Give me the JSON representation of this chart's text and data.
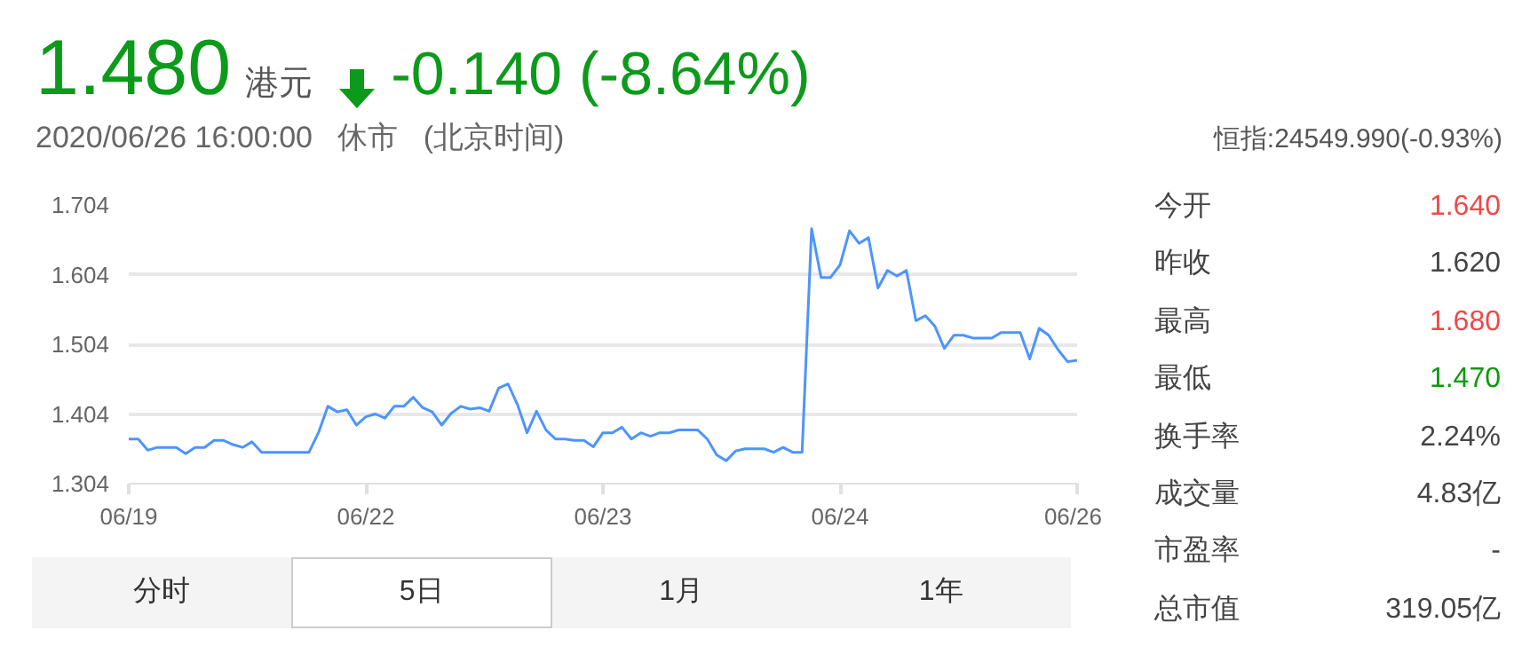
{
  "chart_data": [
    {
      "type": "line",
      "title": "1.480",
      "subtitle": "2020/06/26 16:00:00   休市   (北京时间)",
      "annotations": [
        "港元",
        "-0.140 (-8.64%)",
        "分时",
        "5日",
        "1月",
        "1年"
      ],
      "categories": [
        "06/19",
        null,
        null,
        null,
        null,
        null,
        null,
        null,
        null,
        null,
        null,
        null,
        null,
        null,
        null,
        null,
        null,
        null,
        null,
        null,
        null,
        null,
        null,
        null,
        null,
        "06/22",
        null,
        null,
        null,
        null,
        null,
        null,
        null,
        null,
        null,
        null,
        null,
        null,
        null,
        null,
        null,
        null,
        null,
        null,
        null,
        null,
        null,
        null,
        null,
        null,
        "06/23",
        null,
        null,
        null,
        null,
        null,
        null,
        null,
        null,
        null,
        null,
        null,
        null,
        null,
        null,
        null,
        null,
        null,
        null,
        null,
        null,
        null,
        null,
        null,
        null,
        "06/24",
        null,
        null,
        null,
        null,
        null,
        null,
        null,
        null,
        null,
        null,
        null,
        null,
        null,
        null,
        null,
        null,
        null,
        null,
        null,
        null,
        null,
        null,
        null,
        null,
        "06/26"
      ],
      "values": [
        1.368,
        1.368,
        1.352,
        1.356,
        1.356,
        1.356,
        1.347,
        1.356,
        1.356,
        1.366,
        1.366,
        1.36,
        1.356,
        1.364,
        1.349,
        1.349,
        1.349,
        1.349,
        1.349,
        1.349,
        1.377,
        1.415,
        1.407,
        1.41,
        1.388,
        1.4,
        1.404,
        1.398,
        1.415,
        1.415,
        1.428,
        1.413,
        1.407,
        1.388,
        1.405,
        1.415,
        1.411,
        1.413,
        1.408,
        1.441,
        1.447,
        1.417,
        1.377,
        1.408,
        1.381,
        1.368,
        1.368,
        1.366,
        1.366,
        1.357,
        1.377,
        1.377,
        1.385,
        1.368,
        1.377,
        1.372,
        1.377,
        1.377,
        1.381,
        1.381,
        1.381,
        1.368,
        1.345,
        1.337,
        1.351,
        1.354,
        1.354,
        1.354,
        1.349,
        1.356,
        1.349,
        1.349,
        1.67,
        1.6,
        1.6,
        1.618,
        1.667,
        1.649,
        1.657,
        1.585,
        1.61,
        1.602,
        1.61,
        1.538,
        1.545,
        1.53,
        1.498,
        1.517,
        1.517,
        1.513,
        1.513,
        1.513,
        1.521,
        1.521,
        1.521,
        1.483,
        1.527,
        1.517,
        1.496,
        1.479,
        1.481
      ],
      "color": "#4d94ff",
      "ylim": [
        1.304,
        1.704
      ],
      "yticks": [
        1.304,
        1.404,
        1.504,
        1.604,
        1.704
      ],
      "grid": "y"
    },
    {
      "type": "other",
      "title": "恒指:24549.990(-0.93%)",
      "categories": [
        "今开",
        "昨收",
        "最高",
        "最低",
        "换手率",
        "成交量",
        "市盈率",
        "总市值"
      ],
      "value_labels": [
        "1.640",
        "1.620",
        "1.680",
        "1.470",
        "2.24%",
        "4.83亿",
        "-",
        "319.05亿"
      ],
      "colors": [
        "#f04848",
        "#444444",
        "#f04848",
        "#0a9a0a",
        "#444444",
        "#444444",
        "#444444",
        "#444444"
      ]
    }
  ]
}
